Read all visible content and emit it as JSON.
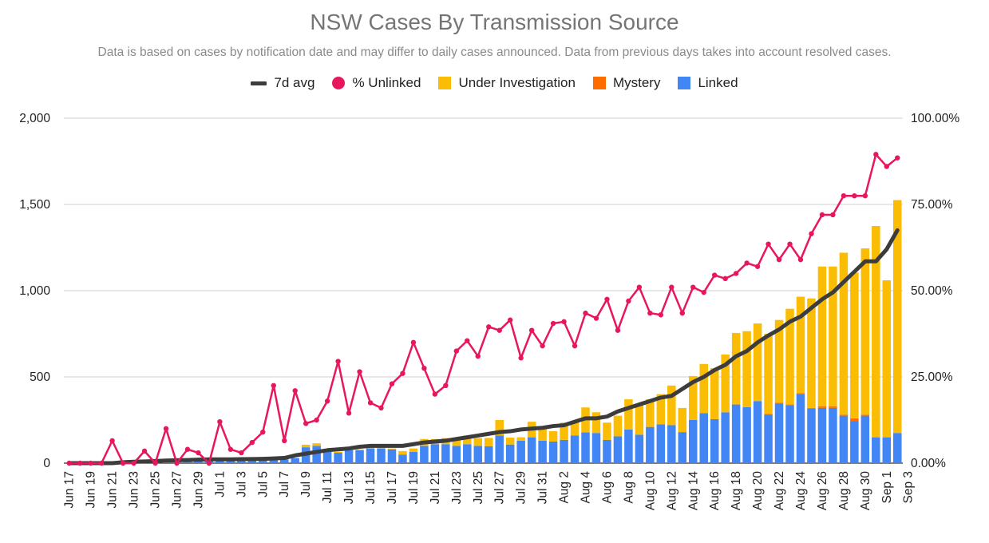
{
  "chart_data": {
    "type": "bar",
    "title": "NSW Cases By Transmission Source",
    "subtitle": "Data is based on cases by notification date and may differ to daily cases announced. Data from previous days takes into account resolved cases.",
    "legend": [
      {
        "label": "7d avg",
        "color": "#3c3c3c",
        "kind": "line"
      },
      {
        "label": "% Unlinked",
        "color": "#e8175d",
        "kind": "dot"
      },
      {
        "label": "Under Investigation",
        "color": "#fbbc04",
        "kind": "box"
      },
      {
        "label": "Mystery",
        "color": "#ff6d01",
        "kind": "box"
      },
      {
        "label": "Linked",
        "color": "#4285f4",
        "kind": "box"
      }
    ],
    "legend_position": "top",
    "y_left": {
      "min": 0,
      "max": 2000,
      "ticks": [
        "0",
        "500",
        "1,000",
        "1,500",
        "2,000"
      ]
    },
    "y_right": {
      "min": 0,
      "max": 100,
      "ticks": [
        "0.00%",
        "25.00%",
        "50.00%",
        "75.00%",
        "100.00%"
      ]
    },
    "x_tick_labels": [
      "Jun 17",
      "Jun 19",
      "Jun 21",
      "Jun 23",
      "Jun 25",
      "Jun 27",
      "Jun 29",
      "Jul 1",
      "Jul 3",
      "Jul 5",
      "Jul 7",
      "Jul 9",
      "Jul 11",
      "Jul 13",
      "Jul 15",
      "Jul 17",
      "Jul 19",
      "Jul 21",
      "Jul 23",
      "Jul 25",
      "Jul 27",
      "Jul 29",
      "Jul 31",
      "Aug 2",
      "Aug 4",
      "Aug 6",
      "Aug 8",
      "Aug 10",
      "Aug 12",
      "Aug 14",
      "Aug 16",
      "Aug 18",
      "Aug 20",
      "Aug 22",
      "Aug 24",
      "Aug 26",
      "Aug 28",
      "Aug 30",
      "Sep 1",
      "Sep 3"
    ],
    "grid": true,
    "start_date": "Jun 17",
    "series": [
      {
        "name": "Linked",
        "values": [
          0,
          0,
          0,
          0,
          0,
          15,
          8,
          10,
          10,
          15,
          18,
          12,
          15,
          22,
          15,
          20,
          18,
          20,
          25,
          20,
          22,
          30,
          92,
          100,
          65,
          60,
          75,
          75,
          85,
          85,
          80,
          50,
          65,
          100,
          110,
          110,
          100,
          110,
          100,
          98,
          160,
          108,
          130,
          150,
          130,
          125,
          135,
          160,
          178,
          175,
          135,
          155,
          195,
          165,
          210,
          225,
          220,
          180,
          250,
          290,
          255,
          295,
          340,
          325,
          360,
          280,
          345,
          335,
          400,
          315,
          320,
          320,
          275,
          245,
          275,
          150,
          150,
          175
        ]
      },
      {
        "name": "Mystery",
        "values": [
          0,
          0,
          0,
          0,
          0,
          0,
          0,
          0,
          0,
          0,
          0,
          0,
          0,
          0,
          0,
          0,
          0,
          0,
          0,
          0,
          0,
          0,
          0,
          0,
          0,
          0,
          0,
          0,
          0,
          0,
          0,
          0,
          0,
          0,
          0,
          0,
          0,
          0,
          0,
          0,
          0,
          0,
          0,
          0,
          0,
          0,
          0,
          0,
          0,
          0,
          0,
          0,
          0,
          0,
          0,
          0,
          0,
          0,
          0,
          0,
          0,
          0,
          0,
          0,
          0,
          5,
          5,
          5,
          5,
          5,
          10,
          10,
          5,
          15,
          5,
          0,
          0,
          0
        ]
      },
      {
        "name": "Under Investigation",
        "values": [
          0,
          0,
          0,
          0,
          0,
          0,
          0,
          0,
          0,
          0,
          0,
          0,
          0,
          0,
          0,
          0,
          0,
          0,
          0,
          0,
          0,
          0,
          15,
          15,
          10,
          5,
          5,
          5,
          5,
          5,
          5,
          20,
          20,
          40,
          30,
          35,
          40,
          50,
          45,
          48,
          90,
          40,
          20,
          90,
          70,
          60,
          100,
          75,
          145,
          120,
          100,
          120,
          175,
          175,
          160,
          175,
          230,
          140,
          255,
          285,
          295,
          335,
          415,
          440,
          450,
          465,
          480,
          555,
          560,
          635,
          810,
          810,
          940,
          845,
          965,
          1225,
          910,
          1350
        ]
      },
      {
        "name": "7d avg",
        "kind": "line",
        "values": [
          0,
          0,
          0,
          0,
          0,
          5,
          8,
          10,
          12,
          15,
          17,
          18,
          20,
          22,
          22,
          22,
          23,
          24,
          25,
          27,
          30,
          45,
          55,
          65,
          75,
          80,
          85,
          95,
          100,
          100,
          100,
          100,
          110,
          120,
          125,
          130,
          140,
          150,
          160,
          170,
          180,
          185,
          195,
          200,
          205,
          215,
          220,
          240,
          260,
          260,
          270,
          300,
          320,
          340,
          360,
          380,
          390,
          430,
          470,
          500,
          540,
          570,
          620,
          650,
          700,
          740,
          775,
          820,
          850,
          900,
          950,
          990,
          1050,
          1110,
          1170,
          1170,
          1240,
          1350
        ]
      },
      {
        "name": "% Unlinked",
        "kind": "line",
        "axis": "right",
        "values": [
          0,
          0,
          0,
          0,
          6.5,
          0,
          0,
          3.5,
          0,
          10,
          0,
          4,
          3,
          0,
          12,
          4,
          3,
          6,
          9,
          22.5,
          6.5,
          21,
          11.5,
          12.5,
          18,
          29.5,
          14.5,
          26.5,
          17.5,
          16,
          23,
          26,
          35,
          27.5,
          20,
          22.5,
          32.5,
          35.5,
          31,
          39.5,
          38.5,
          41.5,
          30.5,
          38.5,
          34,
          40.5,
          41,
          34,
          43.5,
          42,
          47.5,
          38.5,
          47,
          51,
          43.5,
          43,
          51,
          43.5,
          51,
          49.5,
          54.5,
          53.5,
          55,
          58,
          57,
          63.5,
          59,
          63.5,
          59,
          66.5,
          72,
          72,
          77.5,
          77.5,
          77.5,
          89.5,
          86,
          88.5
        ]
      }
    ]
  }
}
